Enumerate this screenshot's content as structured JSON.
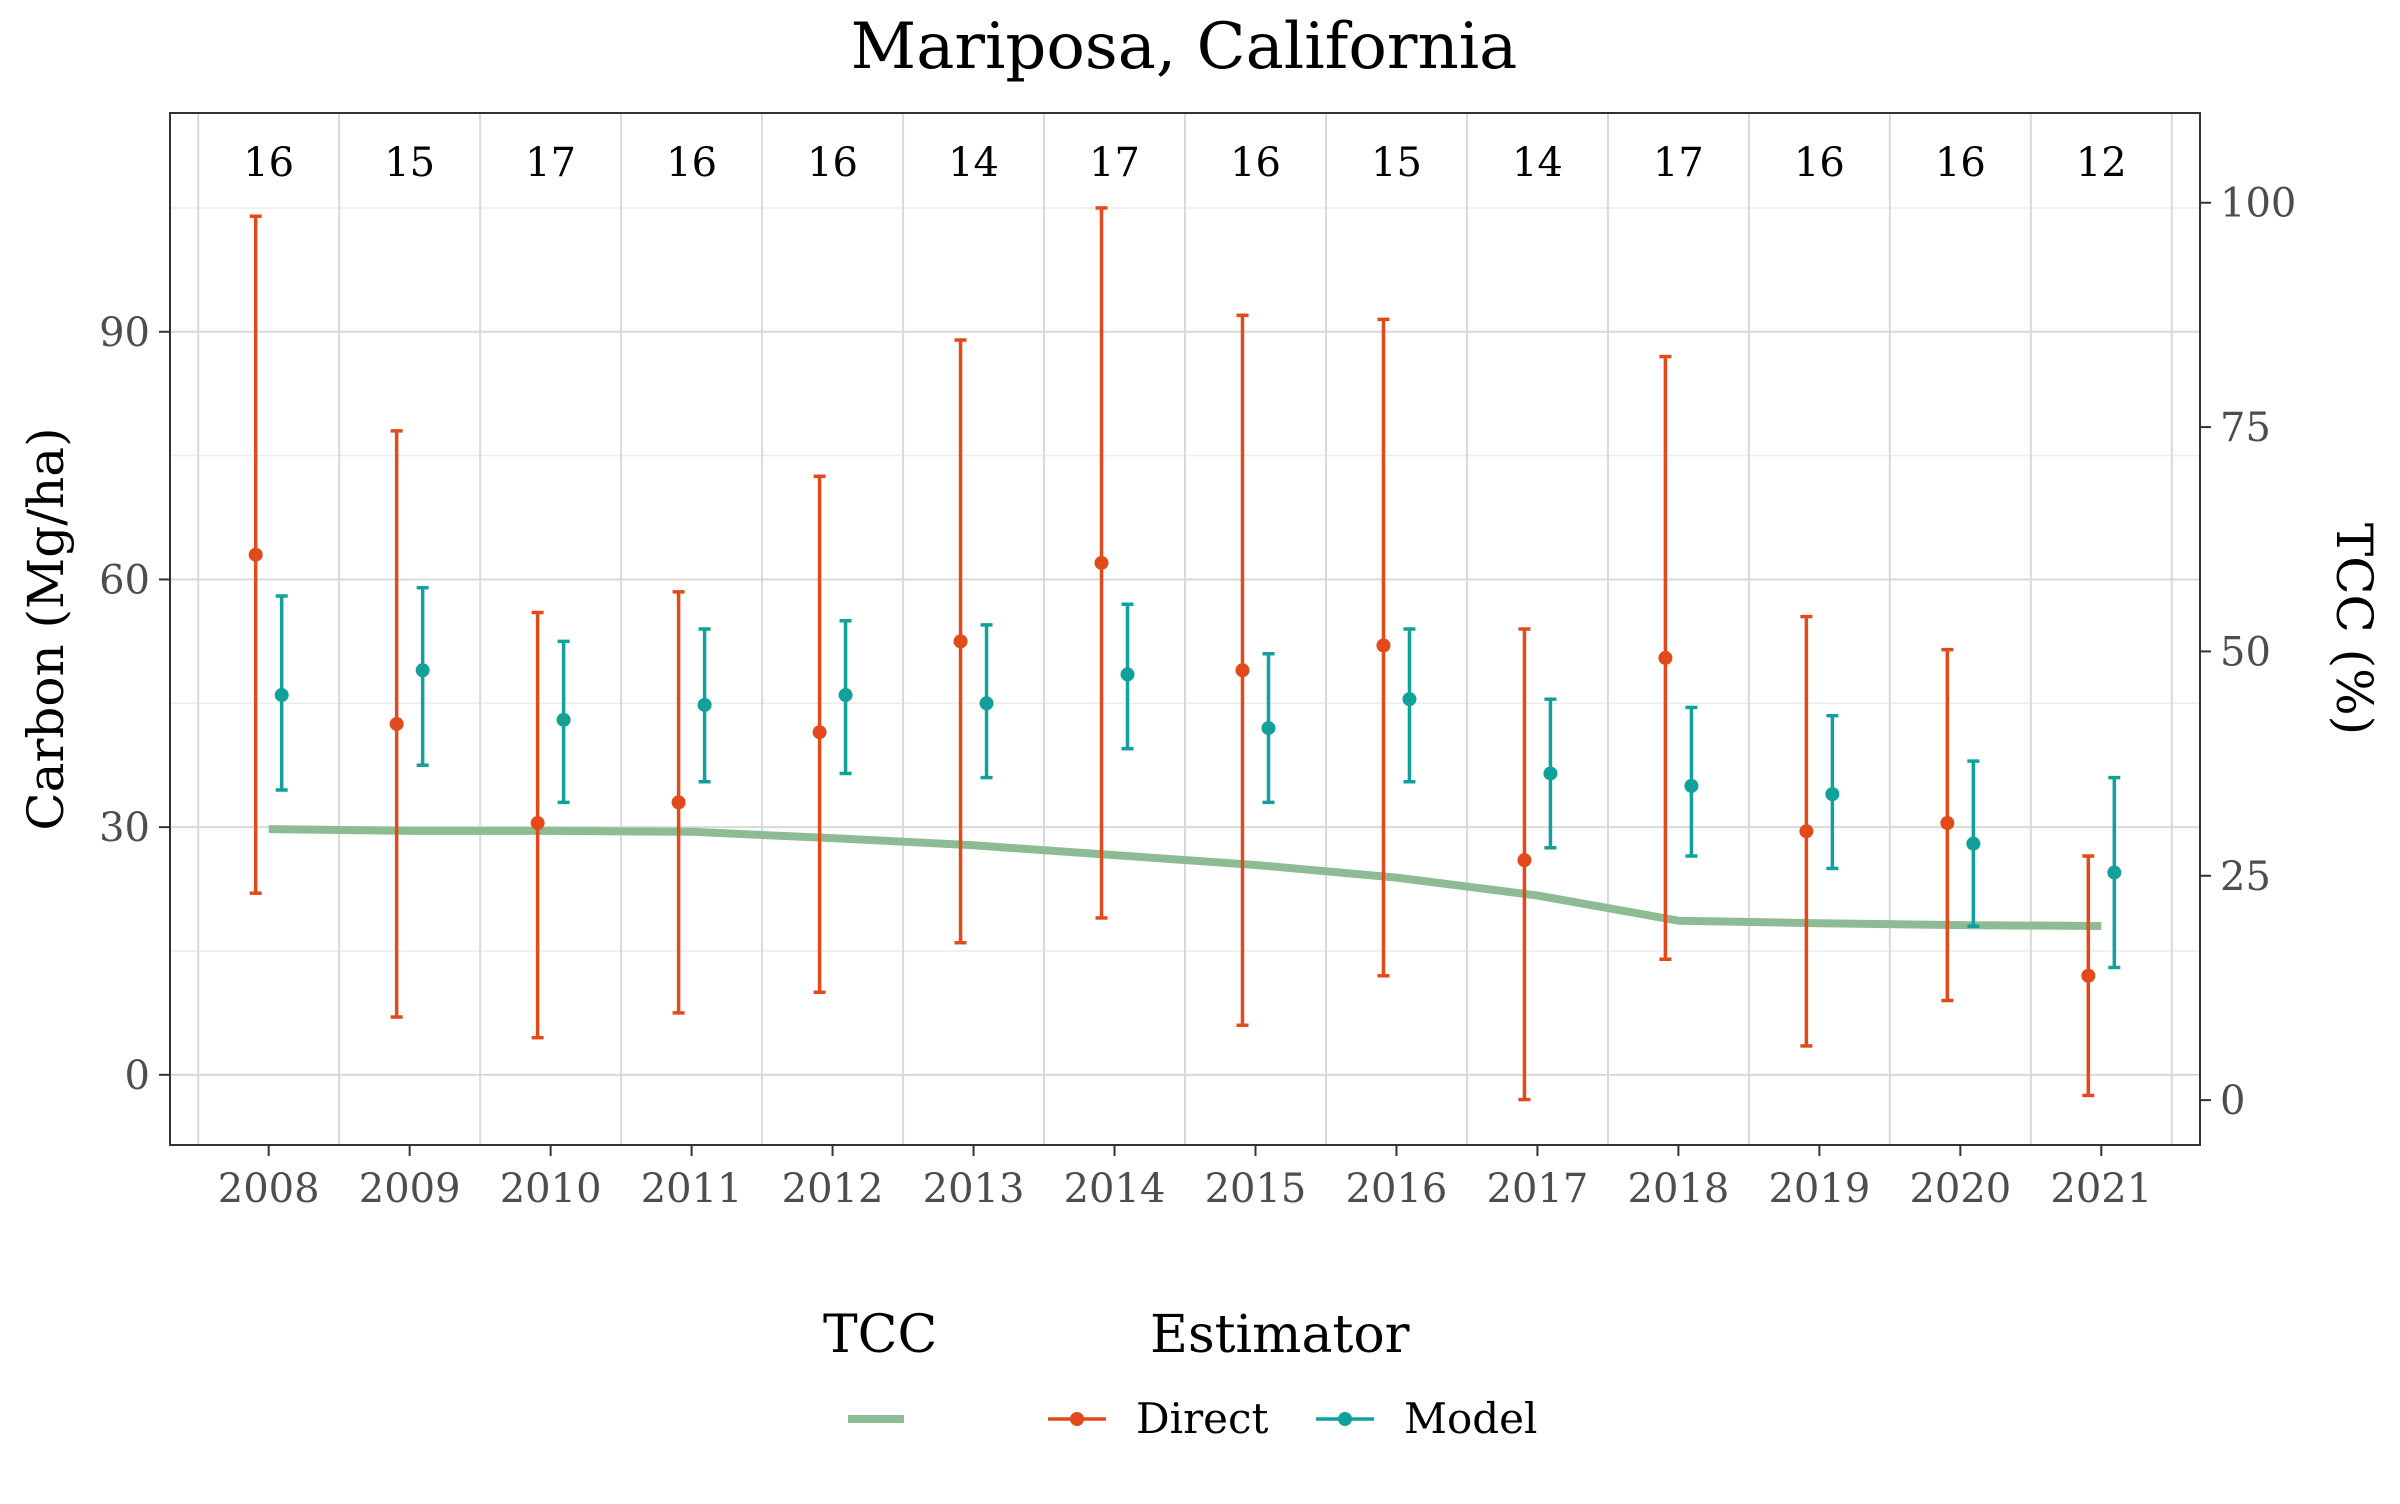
{
  "chart_data": {
    "type": "line",
    "title": "Mariposa, California",
    "ylabel": "Carbon (Mg/ha)",
    "y2label": "TCC (%)",
    "xlabel": "",
    "x": [
      2008,
      2009,
      2010,
      2011,
      2012,
      2013,
      2014,
      2015,
      2016,
      2017,
      2018,
      2019,
      2020,
      2021
    ],
    "x_tick_labels": [
      "2008",
      "2009",
      "2010",
      "2011",
      "2012",
      "2013",
      "2014",
      "2015",
      "2016",
      "2017",
      "2018",
      "2019",
      "2020",
      "2021"
    ],
    "ylim": [
      -8.5,
      116.5
    ],
    "y_ticks": [
      0,
      30,
      60,
      90
    ],
    "y_tick_labels": [
      "0",
      "30",
      "60",
      "90"
    ],
    "y2lim": [
      -5,
      110
    ],
    "y2_ticks": [
      0,
      25,
      50,
      75,
      100
    ],
    "y2_tick_labels": [
      "0",
      "25",
      "50",
      "75",
      "100"
    ],
    "grid": true,
    "counts": [
      "16",
      "15",
      "17",
      "16",
      "16",
      "14",
      "17",
      "16",
      "15",
      "14",
      "17",
      "16",
      "16",
      "12"
    ],
    "series": [
      {
        "name": "Direct",
        "kind": "pointrange",
        "color": "#e34a1b",
        "estimate": [
          63,
          42.5,
          30.5,
          33,
          41.5,
          52.5,
          62,
          49,
          52,
          26,
          50.5,
          29.5,
          30.5,
          12
        ],
        "lower": [
          22,
          7,
          4.5,
          7.5,
          10,
          16,
          19,
          6,
          12,
          -3,
          14,
          3.5,
          9,
          -2.5
        ],
        "upper": [
          104,
          78,
          56,
          58.5,
          72.5,
          89,
          105,
          92,
          91.5,
          54,
          87,
          55.5,
          51.5,
          26.5
        ]
      },
      {
        "name": "Model",
        "kind": "pointrange",
        "color": "#12a09a",
        "estimate": [
          46,
          49,
          43,
          44.8,
          46,
          45,
          48.5,
          42,
          45.5,
          36.5,
          35,
          34,
          28,
          24.5
        ],
        "lower": [
          34.5,
          37.5,
          33,
          35.5,
          36.5,
          36,
          39.5,
          33,
          35.5,
          27.5,
          26.5,
          25,
          18,
          13
        ],
        "upper": [
          58,
          59,
          52.5,
          54,
          55,
          54.5,
          57,
          51,
          54,
          45.5,
          44.5,
          43.5,
          38,
          36
        ]
      },
      {
        "name": "TCC",
        "kind": "line",
        "axis": "right",
        "color": "#8dbc94",
        "values": [
          30.2,
          30.0,
          30.0,
          29.9,
          29.2,
          28.4,
          27.3,
          26.2,
          24.8,
          22.8,
          20.0,
          19.7,
          19.5,
          19.4
        ]
      }
    ],
    "legend": {
      "position": "bottom",
      "groups": [
        {
          "title": "TCC",
          "items": [
            {
              "label": "",
              "color": "#8dbc94",
              "shape": "line"
            }
          ]
        },
        {
          "title": "Estimator",
          "items": [
            {
              "label": "Direct",
              "color": "#e34a1b",
              "shape": "point-line"
            },
            {
              "label": "Model",
              "color": "#12a09a",
              "shape": "point-line"
            }
          ]
        }
      ]
    }
  }
}
